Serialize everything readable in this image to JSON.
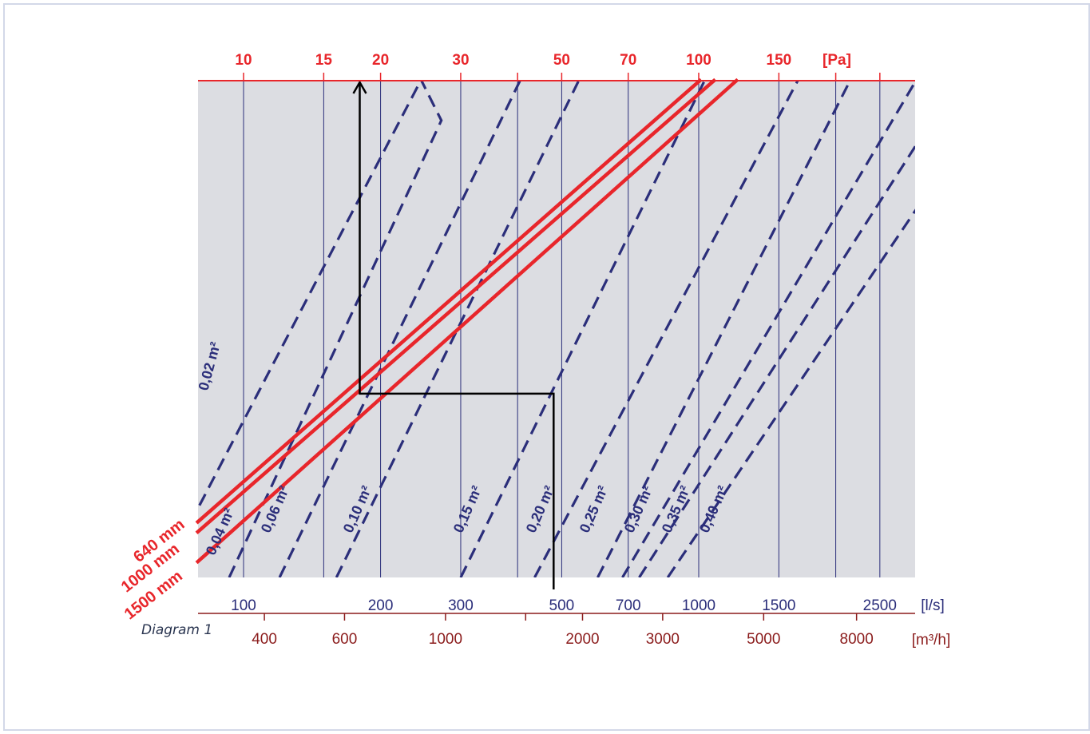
{
  "caption": "Diagram 1",
  "chart_data": {
    "type": "line",
    "title": "",
    "x_axis_flow_ls": {
      "unit_label": "[l/s]",
      "scale": "log",
      "range": [
        80,
        3200
      ],
      "ticks": [
        100,
        150,
        200,
        300,
        400,
        500,
        700,
        1000,
        1500,
        2000,
        2500
      ],
      "tick_labels": [
        {
          "value": 100,
          "label": "100"
        },
        {
          "value": 200,
          "label": "200"
        },
        {
          "value": 300,
          "label": "300"
        },
        {
          "value": 500,
          "label": "500"
        },
        {
          "value": 700,
          "label": "700"
        },
        {
          "value": 1000,
          "label": "1000"
        },
        {
          "value": 1500,
          "label": "1500"
        },
        {
          "value": 2500,
          "label": "2500"
        }
      ]
    },
    "x_axis_flow_m3h": {
      "unit_label": "[m³/h]",
      "ticks": [
        400,
        600,
        1000,
        1500,
        2000,
        3000,
        5000,
        8000
      ],
      "tick_labels": [
        {
          "value": 400,
          "label": "400"
        },
        {
          "value": 600,
          "label": "600"
        },
        {
          "value": 1000,
          "label": "1000"
        },
        {
          "value": 2000,
          "label": "2000"
        },
        {
          "value": 3000,
          "label": "3000"
        },
        {
          "value": 5000,
          "label": "5000"
        },
        {
          "value": 8000,
          "label": "8000"
        }
      ]
    },
    "top_axis_pressure": {
      "unit_label": "[Pa]",
      "ticks": [
        {
          "value": 10,
          "label": "10",
          "at_ls": 100
        },
        {
          "value": 15,
          "label": "15",
          "at_ls": 150
        },
        {
          "value": 20,
          "label": "20",
          "at_ls": 200
        },
        {
          "value": 30,
          "label": "30",
          "at_ls": 300
        },
        {
          "value": 50,
          "label": "50",
          "at_ls": 500
        },
        {
          "value": 70,
          "label": "70",
          "at_ls": 700
        },
        {
          "value": 100,
          "label": "100",
          "at_ls": 1000
        },
        {
          "value": 150,
          "label": "150",
          "at_ls": 1500
        }
      ]
    },
    "area_series": [
      {
        "name": "0,02 m²",
        "color": "#2b2e7a",
        "pts": [
          [
            80,
            0.145
          ],
          [
            245,
            1.0
          ]
        ]
      },
      {
        "name": "0,04 m²",
        "color": "#2b2e7a",
        "pts": [
          [
            93,
            0.0
          ],
          [
            272,
            0.92
          ],
          [
            246,
            1.0
          ]
        ]
      },
      {
        "name": "0,06 m²",
        "color": "#2b2e7a",
        "pts": [
          [
            120,
            0.0
          ],
          [
            405,
            1.0
          ]
        ]
      },
      {
        "name": "0,10 m²",
        "color": "#2b2e7a",
        "pts": [
          [
            160,
            0.0
          ],
          [
            545,
            1.0
          ]
        ]
      },
      {
        "name": "0,15 m²",
        "color": "#2b2e7a",
        "pts": [
          [
            300,
            0.0
          ],
          [
            1030,
            1.0
          ]
        ]
      },
      {
        "name": "0,20 m²",
        "color": "#2b2e7a",
        "pts": [
          [
            436,
            0.0
          ],
          [
            1650,
            1.0
          ]
        ]
      },
      {
        "name": "0,25 m²",
        "color": "#2b2e7a",
        "pts": [
          [
            600,
            0.0
          ],
          [
            2150,
            1.0
          ]
        ]
      },
      {
        "name": "0,30 m²",
        "color": "#2b2e7a",
        "pts": [
          [
            680,
            0.0
          ],
          [
            3000,
            1.0
          ]
        ]
      },
      {
        "name": "0,35 m²",
        "color": "#2b2e7a",
        "pts": [
          [
            740,
            0.0
          ],
          [
            3050,
            0.88
          ]
        ]
      },
      {
        "name": "0,40 m²",
        "color": "#2b2e7a",
        "pts": [
          [
            855,
            0.0
          ],
          [
            3050,
            0.75
          ]
        ]
      }
    ],
    "length_series": [
      {
        "name": "640 mm",
        "color": "#e8262b",
        "pts": [
          [
            80,
            0.12
          ],
          [
            1005,
            1.0
          ]
        ]
      },
      {
        "name": "1000 mm",
        "color": "#e8262b",
        "pts": [
          [
            80,
            0.1
          ],
          [
            1080,
            1.0
          ]
        ]
      },
      {
        "name": "1500 mm",
        "color": "#e8262b",
        "pts": [
          [
            80,
            0.04
          ],
          [
            1210,
            1.0
          ]
        ]
      }
    ],
    "example_path": {
      "color": "#000000",
      "start_flow_ls": 480,
      "turn_flow_ls": 180,
      "level": 0.37
    },
    "colors": {
      "plot_background": "#dcdde2",
      "grid": "#2b2e7a",
      "pressure_axis": "#e8262b",
      "flow_ls_axis": "#2b2e7a",
      "flow_m3h_axis": "#8b1c1c"
    },
    "grid": true
  }
}
